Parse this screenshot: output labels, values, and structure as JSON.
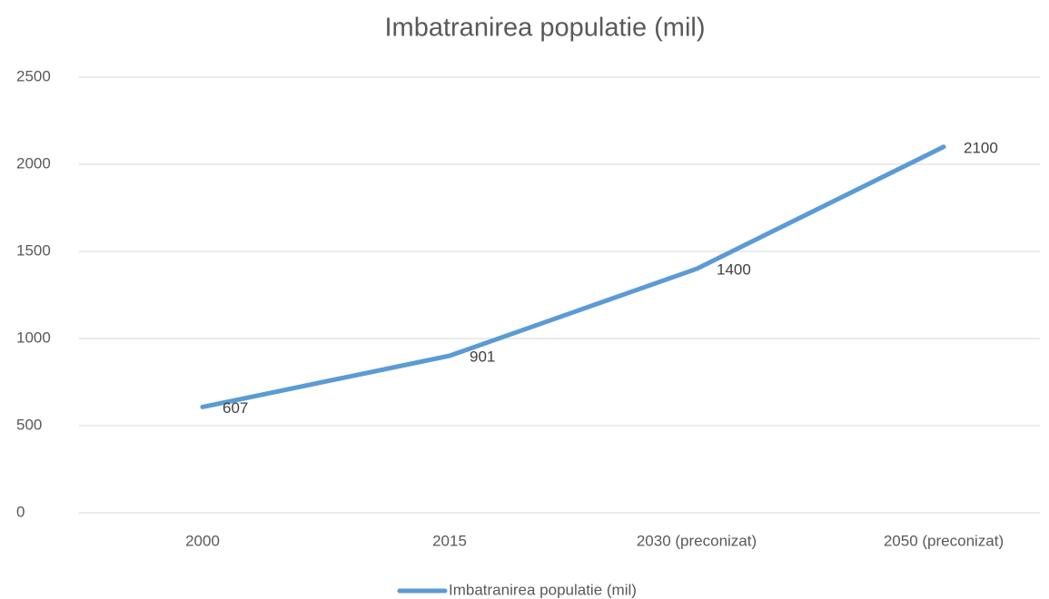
{
  "chart_data": {
    "type": "line",
    "title": "Imbatranirea populatie (mil)",
    "categories": [
      "2000",
      "2015",
      "2030 (preconizat)",
      "2050 (preconizat)"
    ],
    "series": [
      {
        "name": "Imbatranirea populatie (mil)",
        "color": "#5b9bd5",
        "values": [
          607,
          901,
          1400,
          2100
        ]
      }
    ],
    "ylim": [
      0,
      2500
    ],
    "yticks": [
      0,
      500,
      1000,
      1500,
      2000,
      2500
    ],
    "grid": true,
    "legend": "bottom"
  }
}
